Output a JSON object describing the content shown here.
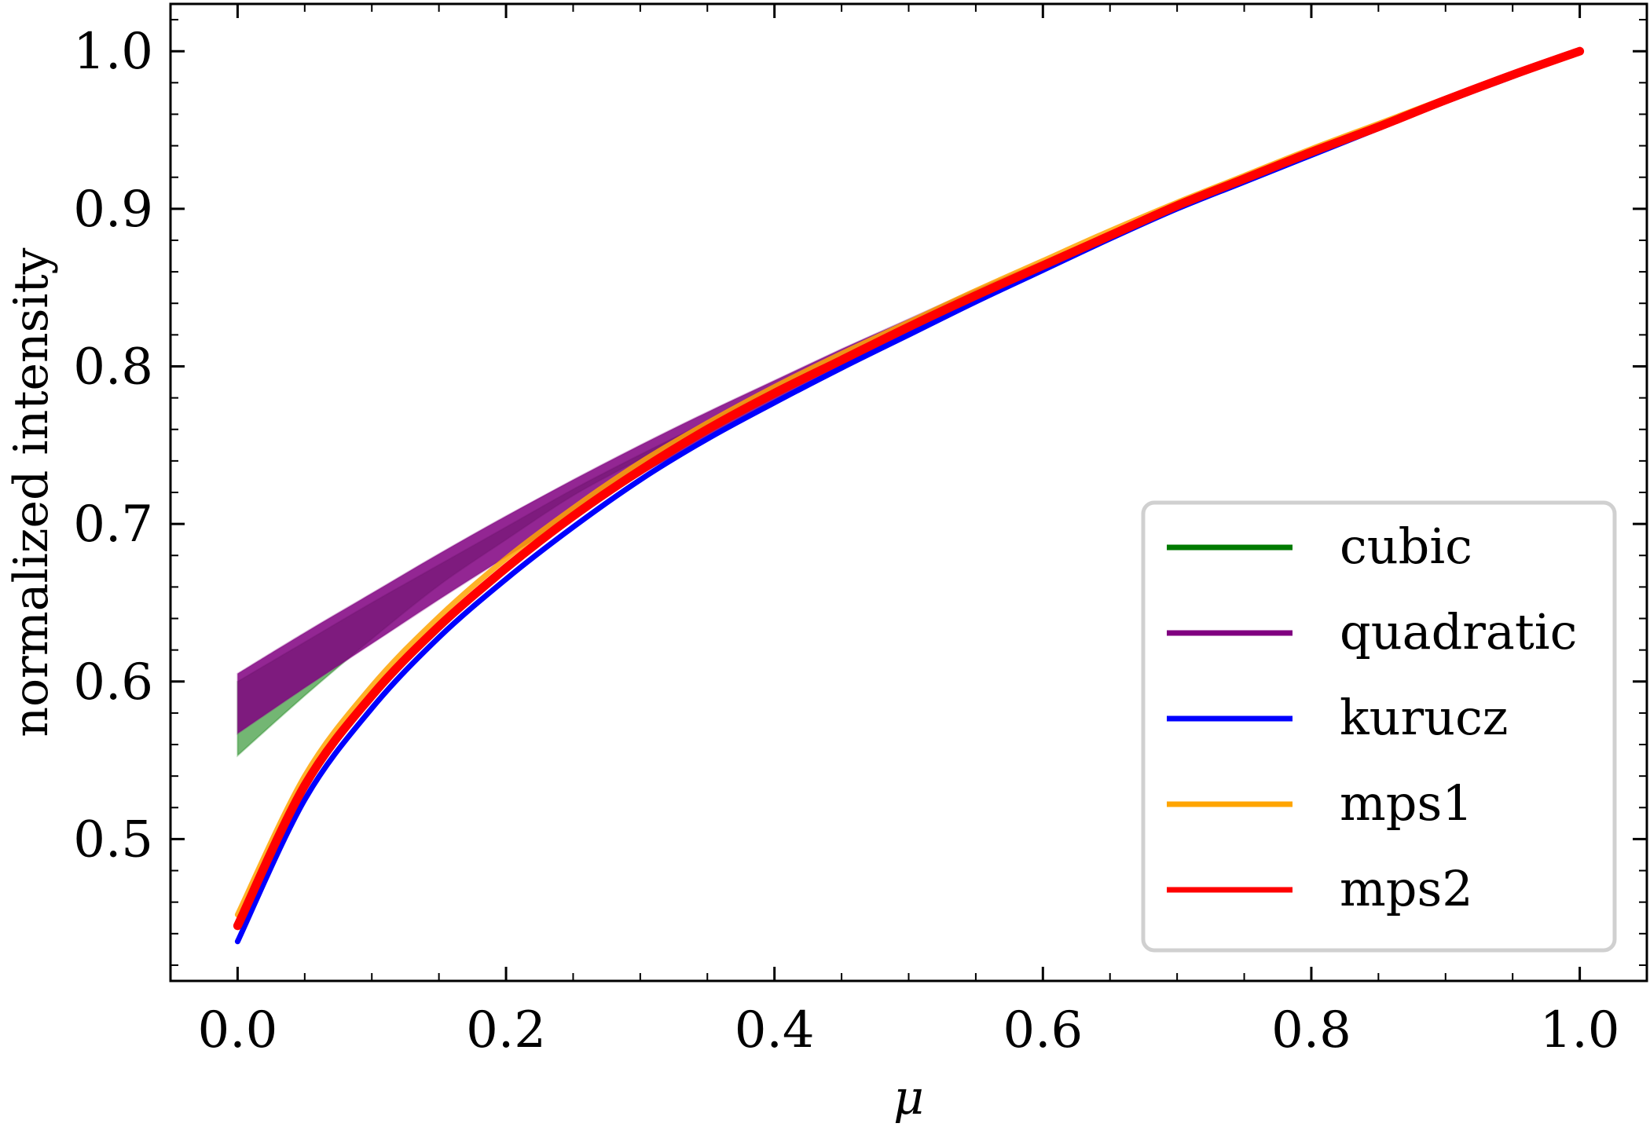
{
  "chart_data": {
    "type": "line",
    "title": "",
    "xlabel": "μ",
    "ylabel": "normalized intensity",
    "xlim": [
      -0.05,
      1.05
    ],
    "ylim": [
      0.41,
      1.03
    ],
    "xticks": [
      "0.0",
      "0.2",
      "0.4",
      "0.6",
      "0.8",
      "1.0"
    ],
    "yticks": [
      "0.5",
      "0.6",
      "0.7",
      "0.8",
      "0.9",
      "1.0"
    ],
    "grid": false,
    "legend": {
      "position": "lower-right"
    },
    "x": [
      0.0,
      0.05,
      0.1,
      0.15,
      0.2,
      0.25,
      0.3,
      0.35,
      0.4,
      0.45,
      0.5,
      0.55,
      0.6,
      0.65,
      0.7,
      0.75,
      0.8,
      0.85,
      0.9,
      0.95,
      1.0
    ],
    "series": [
      {
        "name": "cubic",
        "color": "#007a00",
        "band": {
          "lower": [
            0.553,
            0.591,
            0.627,
            0.661,
            0.69,
            0.718,
            0.741,
            0.763,
            0.785,
            0.805,
            0.825,
            0.845,
            0.864,
            0.883,
            0.901,
            0.918,
            0.935,
            0.952,
            0.968,
            0.984,
            1.0
          ],
          "upper": [
            0.6,
            0.625,
            0.65,
            0.674,
            0.698,
            0.722,
            0.744,
            0.765,
            0.786,
            0.806,
            0.826,
            0.846,
            0.865,
            0.884,
            0.902,
            0.919,
            0.936,
            0.953,
            0.969,
            0.985,
            1.0
          ]
        }
      },
      {
        "name": "quadratic",
        "color": "#800080",
        "band": {
          "lower": [
            0.567,
            0.596,
            0.624,
            0.652,
            0.679,
            0.705,
            0.731,
            0.755,
            0.778,
            0.8,
            0.821,
            0.842,
            0.862,
            0.881,
            0.899,
            0.917,
            0.934,
            0.951,
            0.968,
            0.984,
            1.0
          ],
          "upper": [
            0.605,
            0.631,
            0.656,
            0.681,
            0.705,
            0.728,
            0.75,
            0.771,
            0.791,
            0.811,
            0.83,
            0.849,
            0.867,
            0.885,
            0.903,
            0.92,
            0.937,
            0.953,
            0.969,
            0.985,
            1.0
          ]
        }
      },
      {
        "name": "kurucz",
        "color": "#0000ff",
        "values": [
          0.435,
          0.525,
          0.583,
          0.628,
          0.665,
          0.698,
          0.728,
          0.754,
          0.777,
          0.799,
          0.82,
          0.841,
          0.861,
          0.881,
          0.9,
          0.917,
          0.934,
          0.951,
          0.968,
          0.984,
          1.0
        ]
      },
      {
        "name": "mps1",
        "color": "#ffa500",
        "values": [
          0.452,
          0.54,
          0.597,
          0.641,
          0.678,
          0.71,
          0.739,
          0.764,
          0.787,
          0.808,
          0.828,
          0.848,
          0.867,
          0.886,
          0.904,
          0.921,
          0.938,
          0.954,
          0.97,
          0.985,
          1.0
        ]
      },
      {
        "name": "mps2",
        "color": "#ff0000",
        "values": [
          0.445,
          0.534,
          0.591,
          0.635,
          0.672,
          0.705,
          0.734,
          0.76,
          0.783,
          0.804,
          0.825,
          0.845,
          0.864,
          0.883,
          0.902,
          0.919,
          0.936,
          0.952,
          0.969,
          0.985,
          1.0
        ]
      }
    ]
  }
}
